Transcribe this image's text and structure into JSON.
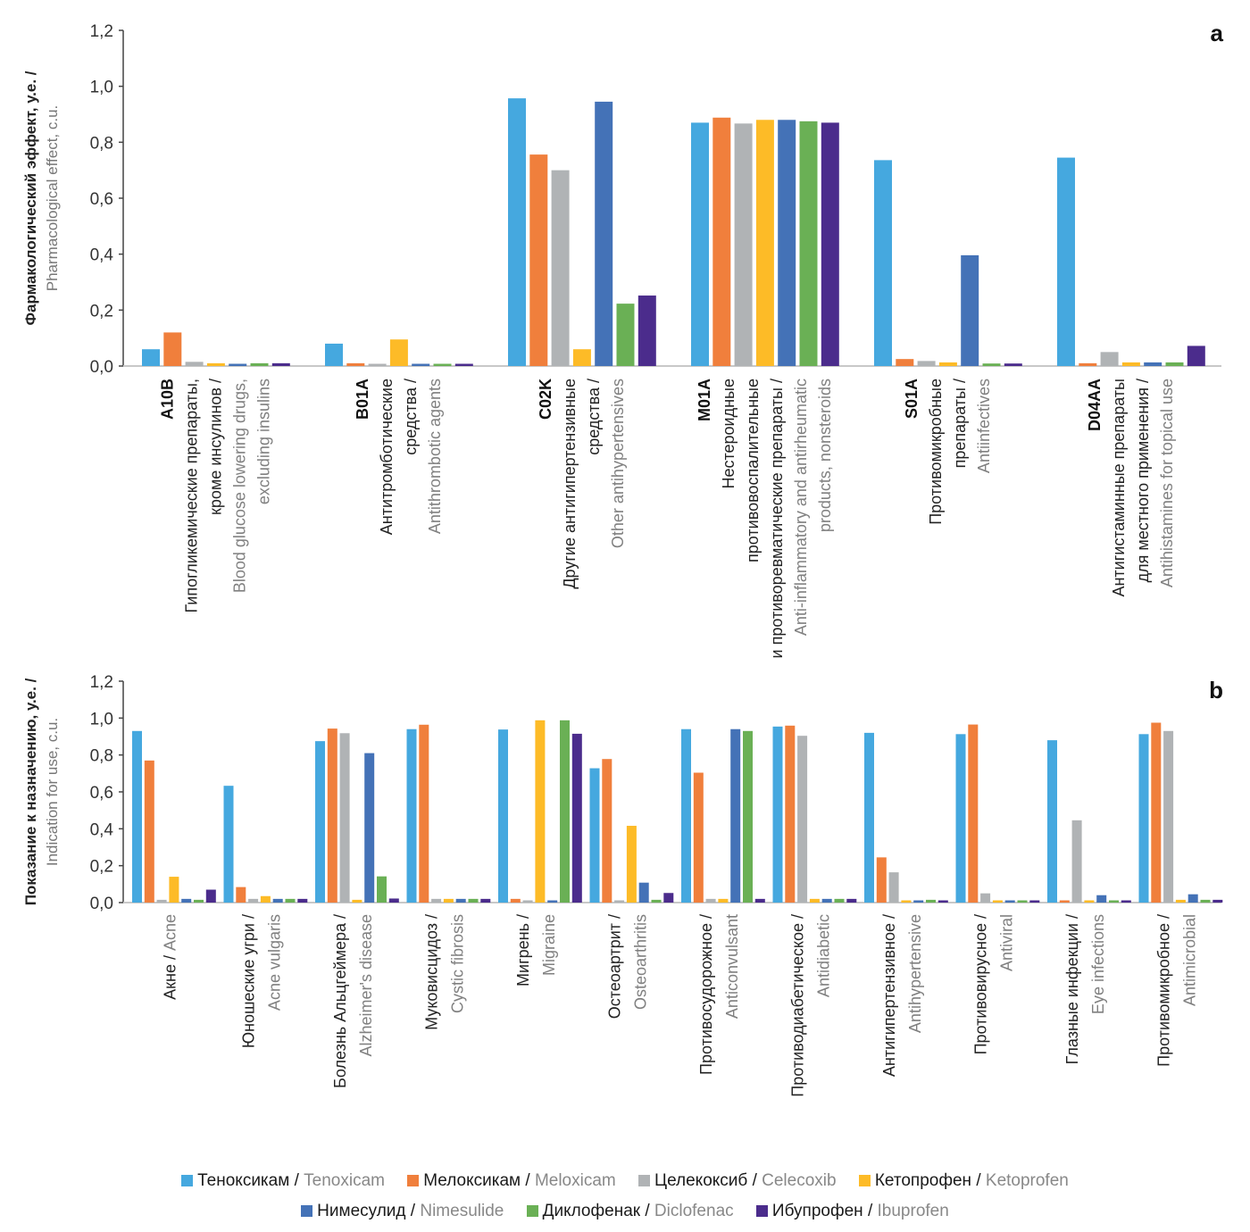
{
  "colors": {
    "Tenoxicam": "#45A8DF",
    "Meloxicam": "#F07F3C",
    "Celecoxib": "#B0B3B5",
    "Ketoprofen": "#FDBB27",
    "Nimesulide": "#4472B7",
    "Diclofenac": "#6AB055",
    "Ibuprofen": "#4B2C8C",
    "axis": "#999999"
  },
  "legend": [
    {
      "ru": "Теноксикам",
      "en": "Tenoxicam",
      "key": "Tenoxicam"
    },
    {
      "ru": "Мелоксикам",
      "en": "Meloxicam",
      "key": "Meloxicam"
    },
    {
      "ru": "Целекоксиб",
      "en": "Celecoxib",
      "key": "Celecoxib"
    },
    {
      "ru": "Кетопрофен",
      "en": "Ketoprofen",
      "key": "Ketoprofen"
    },
    {
      "ru": "Нимесулид",
      "en": "Nimesulide",
      "key": "Nimesulide"
    },
    {
      "ru": "Диклофенак",
      "en": "Diclofenac",
      "key": "Diclofenac"
    },
    {
      "ru": "Ибупрофен",
      "en": "Ibuprofen",
      "key": "Ibuprofen"
    }
  ],
  "chart_data": [
    {
      "type": "bar",
      "panel": "a",
      "ylabel_ru": "Фармакологический эффект, у.е. /",
      "ylabel_en": "Pharmacological effect, c.u.",
      "ylim": [
        0,
        1.2
      ],
      "yticks": [
        "0,0",
        "0,2",
        "0,4",
        "0,6",
        "0,8",
        "1,0",
        "1,2"
      ],
      "grid": false,
      "legend_position": "bottom",
      "categories": [
        {
          "code": "A10B",
          "ru": [
            "Гипогликемические препараты,",
            "кроме инсулинов /"
          ],
          "en": [
            "Blood glucose lowering drugs,",
            "excluding insulins"
          ]
        },
        {
          "code": "B01A",
          "ru": [
            "Антитромботические",
            "средства /"
          ],
          "en": [
            "Antithrombotic agents"
          ]
        },
        {
          "code": "C02K",
          "ru": [
            "Другие антигипертензивные",
            "средства /"
          ],
          "en": [
            "Other antihypertensives"
          ]
        },
        {
          "code": "M01A",
          "ru": [
            "Нестероидные",
            "противовоспалительные",
            "и противоревматические препараты /"
          ],
          "en": [
            "Anti-inflammatory and antirheumatic",
            "products, nonsteroids"
          ]
        },
        {
          "code": "S01A",
          "ru": [
            "Противомикробные",
            "препараты /"
          ],
          "en": [
            "Antiinfectives"
          ]
        },
        {
          "code": "D04AA",
          "ru": [
            "Антигистаминные препараты",
            "для местного применения /"
          ],
          "en": [
            "Antihistamines for topical use"
          ]
        }
      ],
      "series": [
        {
          "name": "Tenoxicam",
          "values": [
            0.06,
            0.08,
            0.957,
            0.87,
            0.736,
            0.745
          ]
        },
        {
          "name": "Meloxicam",
          "values": [
            0.12,
            0.01,
            0.756,
            0.888,
            0.025,
            0.01
          ]
        },
        {
          "name": "Celecoxib",
          "values": [
            0.015,
            0.005,
            0.7,
            0.867,
            0.018,
            0.05
          ]
        },
        {
          "name": "Ketoprofen",
          "values": [
            0.01,
            0.095,
            0.06,
            0.88,
            0.013,
            0.013
          ]
        },
        {
          "name": "Nimesulide",
          "values": [
            0.008,
            0.005,
            0.945,
            0.88,
            0.396,
            0.013
          ]
        },
        {
          "name": "Diclofenac",
          "values": [
            0.01,
            0.005,
            0.223,
            0.875,
            0.009,
            0.013
          ]
        },
        {
          "name": "Ibuprofen",
          "values": [
            0.01,
            0.005,
            0.252,
            0.87,
            0.009,
            0.072
          ]
        }
      ]
    },
    {
      "type": "bar",
      "panel": "b",
      "ylabel_ru": "Показание к назначению, у.е. /",
      "ylabel_en": "Indication for use, c.u.",
      "ylim": [
        0,
        1.2
      ],
      "yticks": [
        "0,0",
        "0,2",
        "0,4",
        "0,6",
        "0,8",
        "1,0",
        "1,2"
      ],
      "grid": false,
      "legend_position": "bottom",
      "categories": [
        {
          "ru": [
            "Акне / "
          ],
          "en": [
            "Acne"
          ],
          "inline": true
        },
        {
          "ru": [
            "Юношеские угри /"
          ],
          "en": [
            "Acne vulgaris"
          ]
        },
        {
          "ru": [
            "Болезнь Альцгеймера /"
          ],
          "en": [
            "Alzheimer's disease"
          ]
        },
        {
          "ru": [
            "Муковисцидоз /"
          ],
          "en": [
            "Cystic fibrosis"
          ]
        },
        {
          "ru": [
            "Мигрень /"
          ],
          "en": [
            "Migraine"
          ]
        },
        {
          "ru": [
            "Остеоартрит /"
          ],
          "en": [
            "Osteoarthritis"
          ]
        },
        {
          "ru": [
            "Противосудорожное /"
          ],
          "en": [
            "Anticonvulsant"
          ]
        },
        {
          "ru": [
            "Противодиабетическое /"
          ],
          "en": [
            "Antidiabetic"
          ]
        },
        {
          "ru": [
            "Антигипертензивное /"
          ],
          "en": [
            "Antihypertensive"
          ]
        },
        {
          "ru": [
            "Противовирусное /"
          ],
          "en": [
            "Antiviral"
          ]
        },
        {
          "ru": [
            "Глазные инфекции /"
          ],
          "en": [
            "Eye infections"
          ]
        },
        {
          "ru": [
            "Противомикробное /"
          ],
          "en": [
            "Antimicrobial"
          ]
        }
      ],
      "series": [
        {
          "name": "Tenoxicam",
          "values": [
            0.93,
            0.633,
            0.875,
            0.94,
            0.938,
            0.728,
            0.94,
            0.954,
            0.92,
            0.913,
            0.88,
            0.913
          ]
        },
        {
          "name": "Meloxicam",
          "values": [
            0.77,
            0.084,
            0.943,
            0.964,
            0.02,
            0.778,
            0.704,
            0.959,
            0.245,
            0.965,
            0.01,
            0.975
          ]
        },
        {
          "name": "Celecoxib",
          "values": [
            0.015,
            0.02,
            0.918,
            0.02,
            0.01,
            0.005,
            0.02,
            0.904,
            0.164,
            0.05,
            0.446,
            0.93
          ]
        },
        {
          "name": "Ketoprofen",
          "values": [
            0.14,
            0.035,
            0.015,
            0.02,
            0.988,
            0.416,
            0.02,
            0.02,
            0.01,
            0.01,
            0.01,
            0.015
          ]
        },
        {
          "name": "Nimesulide",
          "values": [
            0.02,
            0.02,
            0.81,
            0.02,
            0.01,
            0.108,
            0.94,
            0.02,
            0.01,
            0.01,
            0.04,
            0.045
          ]
        },
        {
          "name": "Diclofenac",
          "values": [
            0.015,
            0.02,
            0.142,
            0.02,
            0.988,
            0.015,
            0.93,
            0.02,
            0.015,
            0.01,
            0.005,
            0.015
          ]
        },
        {
          "name": "Ibuprofen",
          "values": [
            0.07,
            0.02,
            0.022,
            0.02,
            0.915,
            0.052,
            0.02,
            0.02,
            0.01,
            0.01,
            0.005,
            0.015
          ]
        }
      ]
    }
  ]
}
